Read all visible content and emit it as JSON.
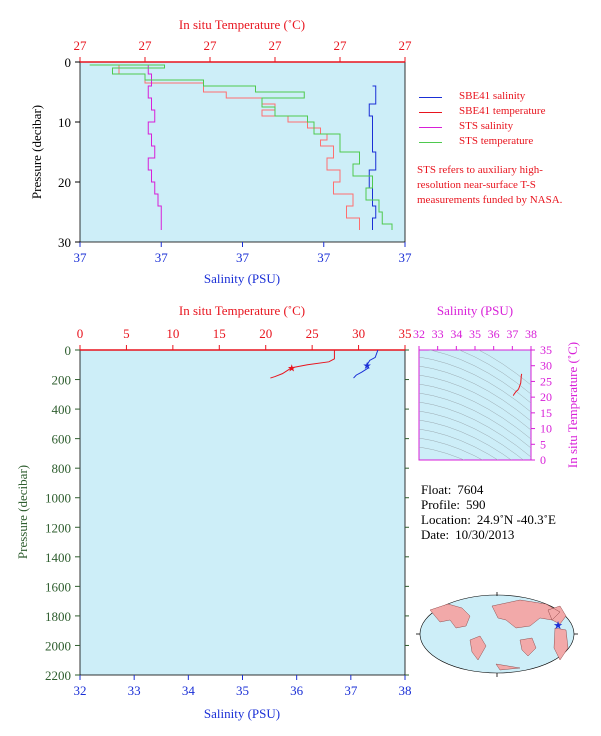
{
  "chart_data": [
    {
      "id": "top",
      "type": "line",
      "x_top_label": "In situ Temperature (˚C)",
      "x_top_ticks": [
        "27",
        "27",
        "27",
        "27",
        "27",
        "27"
      ],
      "x_bottom_label": "Salinity (PSU)",
      "x_bottom_ticks": [
        "37",
        "37",
        "37",
        "37",
        "37"
      ],
      "ylabel": "Pressure (decibar)",
      "ylim": [
        0,
        30
      ],
      "y_ticks": [
        "0",
        "10",
        "20",
        "30"
      ],
      "series": [
        {
          "name": "SBE41 salinity",
          "color": "#1a2fd6",
          "points": [
            [
              0.9,
              4
            ],
            [
              0.91,
              7
            ],
            [
              0.89,
              9
            ],
            [
              0.9,
              12
            ],
            [
              0.9,
              15
            ],
            [
              0.91,
              18
            ],
            [
              0.89,
              21
            ],
            [
              0.9,
              24
            ],
            [
              0.91,
              26
            ],
            [
              0.9,
              28
            ]
          ]
        },
        {
          "name": "SBE41 temperature",
          "color": "#ff6f6f",
          "points": [
            [
              0.03,
              0.5
            ],
            [
              0.12,
              2
            ],
            [
              0.2,
              3.5
            ],
            [
              0.38,
              4
            ],
            [
              0.38,
              5
            ],
            [
              0.45,
              6
            ],
            [
              0.56,
              7
            ],
            [
              0.6,
              8
            ],
            [
              0.56,
              9
            ],
            [
              0.64,
              10
            ],
            [
              0.7,
              11
            ],
            [
              0.74,
              12
            ],
            [
              0.76,
              13
            ],
            [
              0.74,
              14
            ],
            [
              0.78,
              16
            ],
            [
              0.76,
              18
            ],
            [
              0.8,
              20
            ],
            [
              0.78,
              22
            ],
            [
              0.84,
              24
            ],
            [
              0.82,
              26
            ],
            [
              0.86,
              28
            ]
          ]
        },
        {
          "name": "STS salinity",
          "color": "#d81fd8",
          "points": [
            [
              0.22,
              0.5
            ],
            [
              0.21,
              2
            ],
            [
              0.22,
              4
            ],
            [
              0.21,
              6
            ],
            [
              0.22,
              8
            ],
            [
              0.23,
              10
            ],
            [
              0.21,
              12
            ],
            [
              0.22,
              14
            ],
            [
              0.23,
              16
            ],
            [
              0.21,
              18
            ],
            [
              0.22,
              20
            ],
            [
              0.23,
              22
            ],
            [
              0.24,
              24
            ],
            [
              0.25,
              26
            ],
            [
              0.25,
              28
            ]
          ]
        },
        {
          "name": "STS temperature",
          "color": "#4ec94e",
          "points": [
            [
              0.03,
              0.5
            ],
            [
              0.26,
              1
            ],
            [
              0.1,
              2
            ],
            [
              0.2,
              3
            ],
            [
              0.38,
              4
            ],
            [
              0.54,
              5
            ],
            [
              0.69,
              6
            ],
            [
              0.56,
              7.5
            ],
            [
              0.6,
              9
            ],
            [
              0.7,
              10
            ],
            [
              0.72,
              12
            ],
            [
              0.8,
              13
            ],
            [
              0.8,
              15
            ],
            [
              0.86,
              17
            ],
            [
              0.84,
              19
            ],
            [
              0.9,
              21
            ],
            [
              0.88,
              23
            ],
            [
              0.92,
              25
            ],
            [
              0.93,
              27
            ],
            [
              0.96,
              28
            ]
          ]
        }
      ],
      "legend": "right"
    },
    {
      "id": "bottom",
      "type": "line",
      "x_top_label": "In situ Temperature (˚C)",
      "x_top_ticks": [
        "0",
        "5",
        "10",
        "15",
        "20",
        "25",
        "30",
        "35"
      ],
      "x_top_lim": [
        0,
        35
      ],
      "x_bottom_label": "Salinity (PSU)",
      "x_bottom_ticks": [
        "32",
        "33",
        "34",
        "35",
        "36",
        "37",
        "38"
      ],
      "x_bottom_lim": [
        32,
        38
      ],
      "ylabel": "Pressure (decibar)",
      "ylim": [
        0,
        2200
      ],
      "y_ticks": [
        "0",
        "200",
        "400",
        "600",
        "800",
        "1000",
        "1200",
        "1400",
        "1600",
        "1800",
        "2000",
        "2200"
      ],
      "series": [
        {
          "name": "SBE41 temperature",
          "color": "#e8141e",
          "points": [
            [
              27.4,
              0
            ],
            [
              27.4,
              60
            ],
            [
              26.8,
              80
            ],
            [
              24.5,
              100
            ],
            [
              22.8,
              120
            ],
            [
              22.3,
              140
            ],
            [
              21.8,
              160
            ],
            [
              21.0,
              180
            ],
            [
              20.5,
              190
            ]
          ]
        },
        {
          "name": "SBE41 salinity",
          "color": "#1a2fd6",
          "points": [
            [
              37.5,
              0
            ],
            [
              37.48,
              20
            ],
            [
              37.45,
              50
            ],
            [
              37.35,
              70
            ],
            [
              37.3,
              100
            ],
            [
              37.33,
              120
            ],
            [
              37.2,
              150
            ],
            [
              37.1,
              170
            ],
            [
              37.05,
              190
            ]
          ]
        }
      ]
    },
    {
      "id": "ts",
      "type": "line",
      "xlabel": "Salinity (PSU)",
      "x_ticks": [
        "32",
        "33",
        "34",
        "35",
        "36",
        "37",
        "38"
      ],
      "xlim": [
        32,
        38
      ],
      "ylabel": "In situ Temperature (˚C)",
      "y_ticks": [
        "0",
        "5",
        "10",
        "15",
        "20",
        "25",
        "30",
        "35"
      ],
      "ylim": [
        0,
        35
      ],
      "series": [
        {
          "name": "T-S",
          "color": "#e8141e",
          "points": [
            [
              37.05,
              20.5
            ],
            [
              37.1,
              21.0
            ],
            [
              37.2,
              21.8
            ],
            [
              37.3,
              22.3
            ],
            [
              37.35,
              22.8
            ],
            [
              37.45,
              24.5
            ],
            [
              37.48,
              26.8
            ],
            [
              37.5,
              27.4
            ]
          ]
        }
      ]
    }
  ],
  "legend": {
    "items": [
      {
        "label": "SBE41 salinity",
        "color": "#1a2fd6"
      },
      {
        "label": "SBE41 temperature",
        "color": "#e8141e"
      },
      {
        "label": "STS salinity",
        "color": "#d81fd8"
      },
      {
        "label": "STS temperature",
        "color": "#4ec94e"
      }
    ]
  },
  "note": "STS refers to auxiliary high-resolution near-surface T-S measurements funded by NASA.",
  "info": {
    "float_label": "Float:",
    "float_value": "7604",
    "profile_label": "Profile:",
    "profile_value": "590",
    "location_label": "Location:",
    "location_value": "24.9˚N  -40.3˚E",
    "date_label": "Date:",
    "date_value": "10/30/2013"
  },
  "colors": {
    "plot_bg": "#cdeef8",
    "temp_axis": "#e8141e",
    "sal_axis": "#1a2fd6",
    "pressure_axis": "#2e5d2e",
    "ts_axis": "#d81fd8",
    "marker": "#1a2fd6"
  }
}
